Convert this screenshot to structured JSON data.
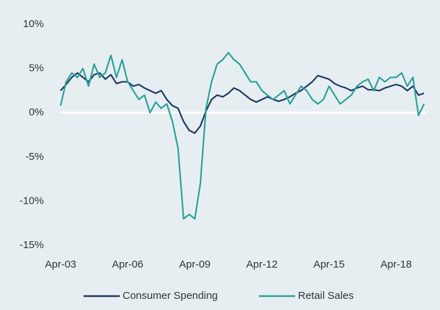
{
  "chart_data": {
    "type": "line",
    "categories": [
      "Apr-03",
      null,
      null,
      null,
      null,
      null,
      null,
      null,
      null,
      null,
      null,
      null,
      "Apr-06",
      null,
      null,
      null,
      null,
      null,
      null,
      null,
      null,
      null,
      null,
      null,
      "Apr-09",
      null,
      null,
      null,
      null,
      null,
      null,
      null,
      null,
      null,
      null,
      null,
      "Apr-12",
      null,
      null,
      null,
      null,
      null,
      null,
      null,
      null,
      null,
      null,
      null,
      "Apr-15",
      null,
      null,
      null,
      null,
      null,
      null,
      null,
      null,
      null,
      null,
      null,
      "Apr-18",
      null,
      null,
      null,
      null,
      null
    ],
    "series": [
      {
        "name": "Consumer Spending",
        "color": "#1f3864",
        "values": [
          2.5,
          3.2,
          4.0,
          4.5,
          4.0,
          3.5,
          4.3,
          4.5,
          3.8,
          4.3,
          3.3,
          3.5,
          3.5,
          3.0,
          3.2,
          2.8,
          2.5,
          2.2,
          2.5,
          1.5,
          0.8,
          0.5,
          -1.0,
          -2.0,
          -2.3,
          -1.5,
          0.2,
          1.5,
          2.0,
          1.8,
          2.2,
          2.8,
          2.5,
          2.0,
          1.5,
          1.2,
          1.5,
          1.8,
          1.5,
          1.3,
          1.5,
          1.8,
          2.2,
          2.5,
          3.0,
          3.5,
          4.2,
          4.0,
          3.8,
          3.3,
          3.0,
          2.8,
          2.5,
          2.8,
          3.0,
          2.6,
          2.6,
          2.5,
          2.8,
          3.0,
          3.2,
          3.0,
          2.5,
          3.0,
          2.0,
          2.2
        ]
      },
      {
        "name": "Retail Sales",
        "color": "#2aa198",
        "values": [
          0.8,
          3.5,
          4.5,
          4.0,
          5.0,
          3.0,
          5.5,
          4.0,
          4.5,
          6.5,
          4.0,
          6.0,
          3.5,
          2.5,
          1.5,
          2.0,
          0.0,
          1.2,
          0.5,
          1.0,
          -1.0,
          -4.0,
          -12.0,
          -11.5,
          -12.0,
          -8.0,
          0.5,
          3.5,
          5.5,
          6.0,
          6.8,
          6.0,
          5.5,
          4.5,
          3.5,
          3.5,
          2.5,
          2.0,
          1.5,
          2.0,
          2.5,
          1.0,
          2.0,
          3.0,
          2.5,
          1.5,
          1.0,
          1.5,
          3.0,
          2.0,
          1.0,
          1.5,
          2.0,
          3.0,
          3.5,
          3.8,
          2.5,
          4.0,
          3.5,
          4.0,
          4.0,
          4.5,
          3.0,
          4.0,
          -0.3,
          1.0
        ]
      }
    ],
    "ylim": [
      -15,
      10
    ],
    "yticks": [
      {
        "value": -15,
        "label": "-15%"
      },
      {
        "value": -10,
        "label": "-10%"
      },
      {
        "value": -5,
        "label": "-5%"
      },
      {
        "value": 0,
        "label": "0%"
      },
      {
        "value": 5,
        "label": "5%"
      },
      {
        "value": 10,
        "label": "10%"
      }
    ],
    "grid": false,
    "legend": "bottom"
  }
}
